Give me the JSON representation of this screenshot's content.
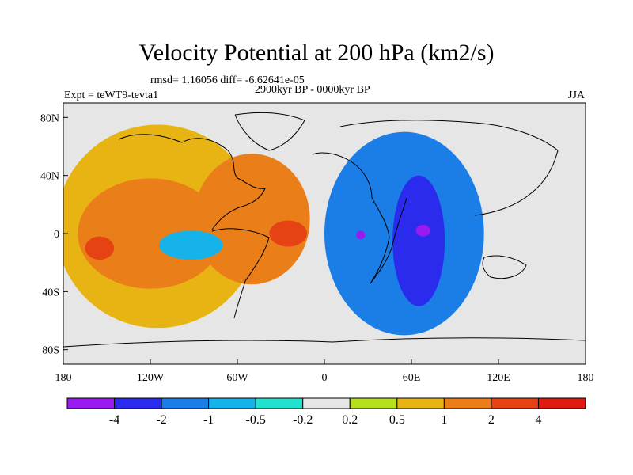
{
  "chart_data": {
    "type": "heatmap",
    "title": "Velocity Potential at 200 hPa (km2/s)",
    "stats_text": "rmsd= 1.16056 diff= -6.62641e-05",
    "period": "2900kyr BP - 0000kyr BP",
    "experiment": "Expt = teWT9-tevta1",
    "season": "JJA",
    "x_ticks": [
      "180",
      "120W",
      "60W",
      "0",
      "60E",
      "120E",
      "180"
    ],
    "y_ticks": [
      "80N",
      "40N",
      "0",
      "40S",
      "80S"
    ],
    "xlim": [
      -180,
      180
    ],
    "ylim": [
      -90,
      90
    ],
    "colorbar": {
      "labels": [
        "-4",
        "-2",
        "-1",
        "-0.5",
        "-0.2",
        "0.2",
        "0.5",
        "1",
        "2",
        "4"
      ],
      "colors": [
        "#9a1bf0",
        "#2b2bee",
        "#1b7ee6",
        "#15b3ea",
        "#22e1cf",
        "#e6e6e6",
        "#b5e01b",
        "#e8b414",
        "#ea7f19",
        "#e54313",
        "#e11a10"
      ]
    },
    "features": [
      {
        "name": "pacific-positive-broad",
        "lon": -115,
        "lat": 5,
        "rx": 70,
        "ry": 70,
        "level": 1
      },
      {
        "name": "pacific-positive-core",
        "lon": -120,
        "lat": 0,
        "rx": 50,
        "ry": 38,
        "level": 2
      },
      {
        "name": "pacific-max",
        "lon": -155,
        "lat": -10,
        "rx": 10,
        "ry": 8,
        "level": 4
      },
      {
        "name": "atlantic-positive",
        "lon": -50,
        "lat": 10,
        "rx": 40,
        "ry": 45,
        "level": 2
      },
      {
        "name": "atlantic-max",
        "lon": -25,
        "lat": 0,
        "rx": 13,
        "ry": 9,
        "level": 4
      },
      {
        "name": "south-america-low",
        "lon": -92,
        "lat": -8,
        "rx": 22,
        "ry": 10,
        "level": -0.5
      },
      {
        "name": "indian-ocean-negative",
        "lon": 55,
        "lat": 0,
        "rx": 55,
        "ry": 70,
        "level": -1
      },
      {
        "name": "indian-ocean-core",
        "lon": 65,
        "lat": -5,
        "rx": 18,
        "ry": 45,
        "level": -2
      },
      {
        "name": "indian-ocean-min",
        "lon": 68,
        "lat": 2,
        "rx": 5,
        "ry": 4,
        "level": -4
      },
      {
        "name": "africa-min",
        "lon": 25,
        "lat": -1,
        "rx": 3,
        "ry": 3,
        "level": -4
      }
    ]
  }
}
